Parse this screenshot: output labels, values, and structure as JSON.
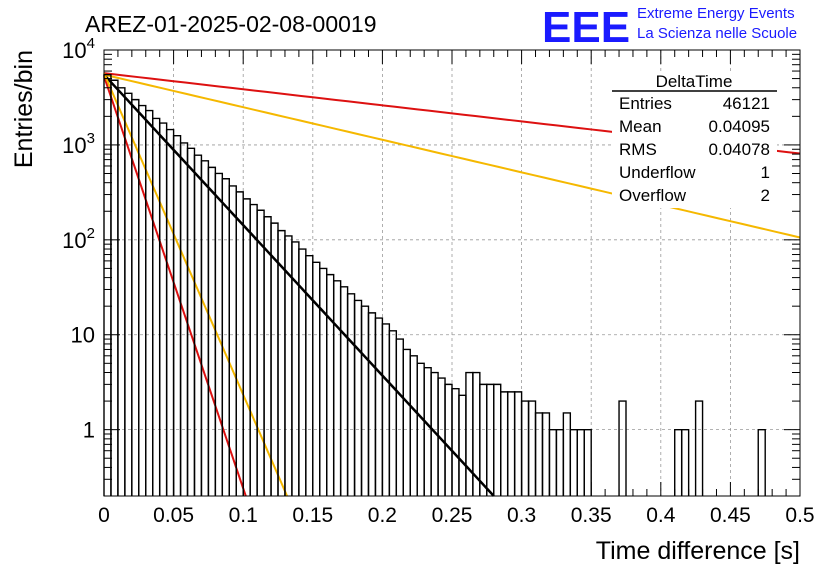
{
  "header": {
    "run_title": "AREZ-01-2025-02-08-00019",
    "logo_text": "EEE",
    "logo_line1": "Extreme Energy Events",
    "logo_line2": "La Scienza nelle Scuole",
    "logo_color": "#1a1aff"
  },
  "stats_box": {
    "title": "DeltaTime",
    "rows": [
      {
        "label": "Entries",
        "value": "46121"
      },
      {
        "label": "Mean",
        "value": "0.04095"
      },
      {
        "label": "RMS",
        "value": "0.04078"
      },
      {
        "label": "Underflow",
        "value": "1"
      },
      {
        "label": "Overflow",
        "value": "2"
      }
    ]
  },
  "chart_data": {
    "type": "histogram",
    "xlabel": "Time difference [s]",
    "ylabel": "Entries/bin",
    "xlim": [
      0,
      0.5
    ],
    "ylim": [
      0.2,
      10000
    ],
    "yscale": "log",
    "grid": true,
    "bin_width": 0.005,
    "xticks": [
      "0",
      "0.05",
      "0.1",
      "0.15",
      "0.2",
      "0.25",
      "0.3",
      "0.35",
      "0.4",
      "0.45",
      "0.5"
    ],
    "yticks": [
      {
        "value": 1,
        "base": "1",
        "exp": ""
      },
      {
        "value": 10,
        "base": "10",
        "exp": ""
      },
      {
        "value": 100,
        "base": "10",
        "exp": "2"
      },
      {
        "value": 1000,
        "base": "10",
        "exp": "3"
      },
      {
        "value": 10000,
        "base": "10",
        "exp": "4"
      }
    ],
    "histogram_counts": [
      5500,
      4800,
      4000,
      3500,
      3000,
      2600,
      2300,
      1900,
      1700,
      1450,
      1250,
      1050,
      920,
      780,
      680,
      580,
      500,
      440,
      370,
      320,
      270,
      235,
      205,
      175,
      150,
      125,
      110,
      95,
      80,
      68,
      58,
      50,
      43,
      37,
      32,
      27,
      23,
      20,
      17,
      15,
      13,
      11,
      9,
      7,
      6,
      5,
      4.5,
      4,
      3.5,
      3,
      2.7,
      2.3,
      4,
      4,
      3,
      3,
      3,
      2.5,
      2.5,
      2.5,
      2,
      2,
      1.5,
      1.5,
      1,
      1,
      1.5,
      1,
      1,
      1,
      0,
      0,
      0,
      0,
      2,
      0,
      0,
      0,
      0,
      0,
      0,
      0,
      1,
      1,
      0,
      2,
      0,
      0,
      0,
      0,
      0,
      0,
      0,
      0,
      1,
      0,
      0,
      0,
      0,
      0
    ],
    "fits": [
      {
        "color": "#000000",
        "y0": 5500,
        "slope_per_s": 36.5
      },
      {
        "color": "#dd1111",
        "y0": 5700,
        "slope_per_s": 3.9
      },
      {
        "color": "#f5b800",
        "y0": 5500,
        "slope_per_s": 7.9
      },
      {
        "color": "#dd1111",
        "y0": 5300,
        "slope_per_s": 100
      },
      {
        "color": "#f5b800",
        "y0": 5700,
        "slope_per_s": 78
      }
    ]
  }
}
